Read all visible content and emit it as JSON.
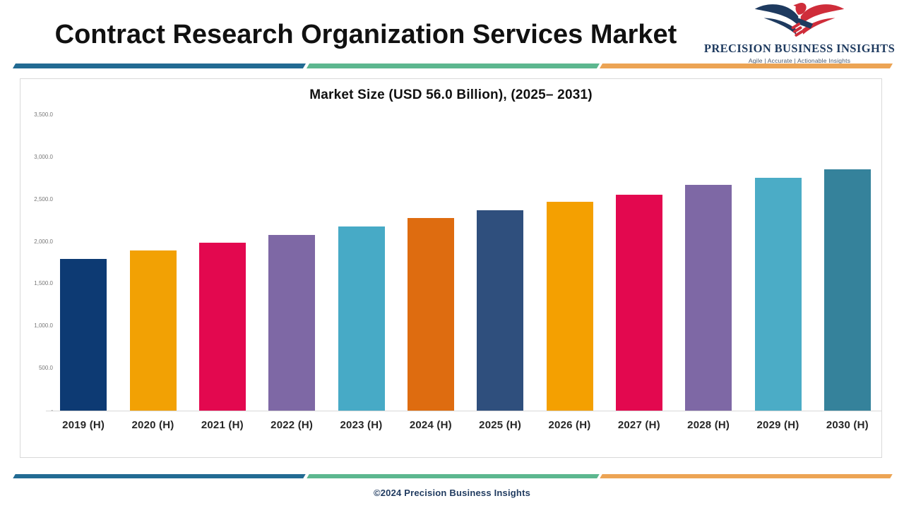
{
  "header": {
    "title": "Contract Research Organization Services Market",
    "logo": {
      "name": "PRECISION BUSINESS INSIGHTS",
      "tagline": "Agile | Accurate | Actionable Insights"
    }
  },
  "chart_data": {
    "type": "bar",
    "title": "Market Size (USD 56.0 Billion), (2025– 2031)",
    "categories": [
      "2019 (H)",
      "2020 (H)",
      "2021 (H)",
      "2022 (H)",
      "2023 (H)",
      "2024 (H)",
      "2025 (H)",
      "2026 (H)",
      "2027 (H)",
      "2028 (H)",
      "2029 (H)",
      "2030 (H)"
    ],
    "values": [
      1800,
      1900,
      1990,
      2080,
      2180,
      2280,
      2370,
      2470,
      2560,
      2670,
      2760,
      2860
    ],
    "bar_colors": [
      "#0d3a73",
      "#f2a104",
      "#e3084f",
      "#7e68a5",
      "#47aac6",
      "#de6c10",
      "#2f4f7d",
      "#f4a001",
      "#e3084f",
      "#7e68a5",
      "#4bacc6",
      "#35829b"
    ],
    "xlabel": "",
    "ylabel": "",
    "ylim": [
      0,
      3500
    ],
    "ytick_values": [
      0,
      500,
      1000,
      1500,
      2000,
      2500,
      3000,
      3500
    ],
    "ytick_labels": [
      "-",
      "500.0",
      "1,000.0",
      "1,500.0",
      "2,000.0",
      "2,500.0",
      "3,000.0",
      "3,500.0"
    ],
    "grid": false,
    "legend": false
  },
  "footer": {
    "copyright": "©2024 Precision Business Insights"
  },
  "colors": {
    "divider_blue": "#226b93",
    "divider_green": "#5cb78f",
    "divider_orange": "#eca454",
    "logo_navy": "#1e3a5f",
    "logo_red": "#cf2d3a",
    "title_text": "#111111",
    "axis_line": "#d9d9d9",
    "tick_text": "#767676",
    "category_text": "#262626",
    "footer_text": "#1f3a5f"
  }
}
